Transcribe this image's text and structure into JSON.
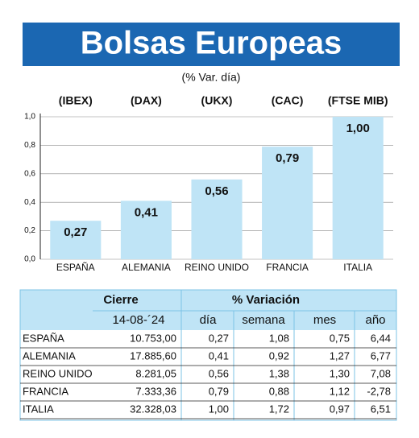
{
  "chart_data": {
    "type": "bar",
    "title": "Bolsas Europeas",
    "subtitle": "(% Var. día)",
    "indices": [
      "(IBEX)",
      "(DAX)",
      "(UKX)",
      "(CAC)",
      "(FTSE MIB)"
    ],
    "categories": [
      "ESPAÑA",
      "ALEMANIA",
      "REINO UNIDO",
      "FRANCIA",
      "ITALIA"
    ],
    "values": [
      0.27,
      0.41,
      0.56,
      0.79,
      1.0
    ],
    "value_labels": [
      "0,27",
      "0,41",
      "0,56",
      "0,79",
      "1,00"
    ],
    "color": "#bfe4f6",
    "ylim": [
      0,
      1
    ],
    "yticks": [
      {
        "value": 0,
        "label": "0,0"
      },
      {
        "value": 0.2,
        "label": "0,2"
      },
      {
        "value": 0.4,
        "label": "0,4"
      },
      {
        "value": 0.6,
        "label": "0,6"
      },
      {
        "value": 0.8,
        "label": "0,8"
      },
      {
        "value": 1,
        "label": "1,0"
      }
    ],
    "grid": true
  },
  "table": {
    "header": [
      "Cierre",
      "% Variación"
    ],
    "date": "14-08-´24",
    "columns": [
      "día",
      "semana",
      "mes",
      "año"
    ],
    "rows": [
      [
        "ESPAÑA",
        "10.753,00",
        "0,27",
        "1,08",
        "0,75",
        "6,44"
      ],
      [
        "ALEMANIA",
        "17.885,60",
        "0,41",
        "0,92",
        "1,27",
        "6,77"
      ],
      [
        "REINO UNIDO",
        "8.281,05",
        "0,56",
        "1,38",
        "1,30",
        "7,08"
      ],
      [
        "FRANCIA",
        "7.333,36",
        "0,79",
        "0,88",
        "1,12",
        "-2,78"
      ],
      [
        "ITALIA",
        "32.328,03",
        "1,00",
        "1,72",
        "0,97",
        "6,51"
      ]
    ]
  }
}
